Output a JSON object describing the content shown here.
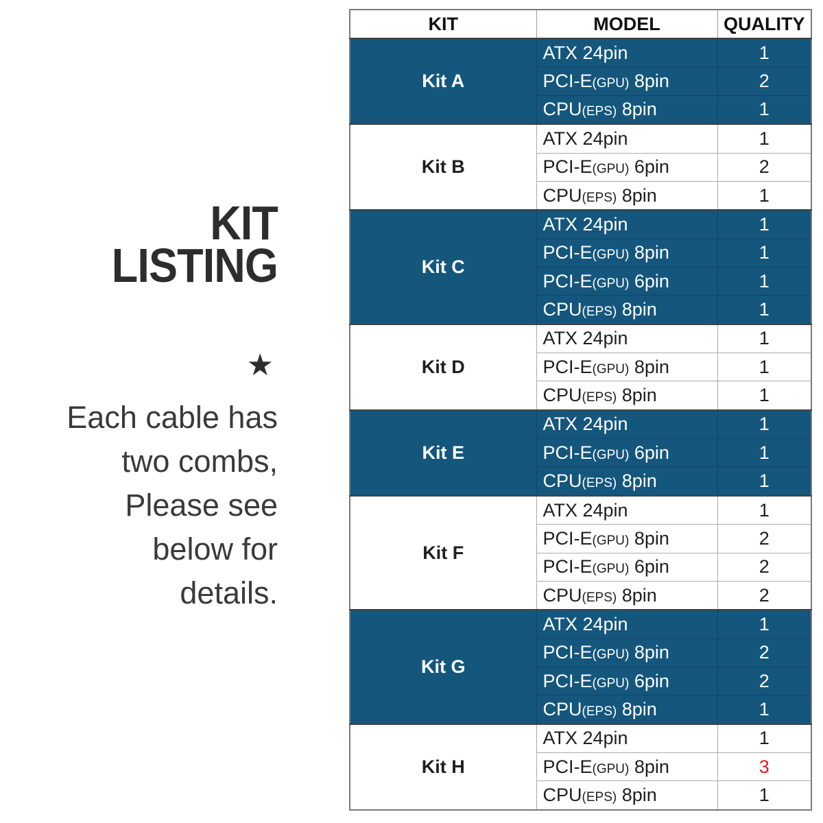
{
  "left_panel": {
    "title_line1": "KIT",
    "title_line2": "LISTING",
    "star_icon": "★",
    "note_lines": [
      "Each cable has",
      "two combs,",
      "Please see",
      "below for",
      "details."
    ]
  },
  "table": {
    "headers": [
      "KIT",
      "MODEL",
      "QUALITY"
    ],
    "colors": {
      "row_blue": "#15567D",
      "row_white": "#ffffff",
      "text_on_blue": "#ffffff",
      "text_on_white": "#1f1f1f",
      "qty_red": "#e01f1f",
      "section_border": "#414141"
    },
    "kits": [
      {
        "name": "Kit A",
        "shaded": true,
        "rows": [
          {
            "model": {
              "main": "ATX 24pin",
              "sub": "",
              "tail": ""
            },
            "qty": "1",
            "red": false
          },
          {
            "model": {
              "main": "PCI-E",
              "sub": "(GPU)",
              "tail": " 8pin"
            },
            "qty": "2",
            "red": false
          },
          {
            "model": {
              "main": "CPU",
              "sub": "(EPS)",
              "tail": " 8pin"
            },
            "qty": "1",
            "red": false
          }
        ]
      },
      {
        "name": "Kit B",
        "shaded": false,
        "rows": [
          {
            "model": {
              "main": "ATX 24pin",
              "sub": "",
              "tail": ""
            },
            "qty": "1",
            "red": false
          },
          {
            "model": {
              "main": "PCI-E",
              "sub": "(GPU)",
              "tail": " 6pin"
            },
            "qty": "2",
            "red": false
          },
          {
            "model": {
              "main": "CPU",
              "sub": "(EPS)",
              "tail": " 8pin"
            },
            "qty": "1",
            "red": false
          }
        ]
      },
      {
        "name": "Kit C",
        "shaded": true,
        "rows": [
          {
            "model": {
              "main": "ATX 24pin",
              "sub": "",
              "tail": ""
            },
            "qty": "1",
            "red": false
          },
          {
            "model": {
              "main": "PCI-E",
              "sub": "(GPU)",
              "tail": " 8pin"
            },
            "qty": "1",
            "red": false
          },
          {
            "model": {
              "main": "PCI-E",
              "sub": "(GPU)",
              "tail": " 6pin"
            },
            "qty": "1",
            "red": false
          },
          {
            "model": {
              "main": "CPU",
              "sub": "(EPS)",
              "tail": " 8pin"
            },
            "qty": "1",
            "red": false
          }
        ]
      },
      {
        "name": "Kit D",
        "shaded": false,
        "rows": [
          {
            "model": {
              "main": "ATX 24pin",
              "sub": "",
              "tail": ""
            },
            "qty": "1",
            "red": false
          },
          {
            "model": {
              "main": "PCI-E",
              "sub": "(GPU)",
              "tail": " 8pin"
            },
            "qty": "1",
            "red": false
          },
          {
            "model": {
              "main": "CPU",
              "sub": "(EPS)",
              "tail": " 8pin"
            },
            "qty": "1",
            "red": false
          }
        ]
      },
      {
        "name": "Kit E",
        "shaded": true,
        "rows": [
          {
            "model": {
              "main": "ATX 24pin",
              "sub": "",
              "tail": ""
            },
            "qty": "1",
            "red": false
          },
          {
            "model": {
              "main": "PCI-E",
              "sub": "(GPU)",
              "tail": " 6pin"
            },
            "qty": "1",
            "red": false
          },
          {
            "model": {
              "main": "CPU",
              "sub": "(EPS)",
              "tail": " 8pin"
            },
            "qty": "1",
            "red": false
          }
        ]
      },
      {
        "name": "Kit F",
        "shaded": false,
        "rows": [
          {
            "model": {
              "main": "ATX 24pin",
              "sub": "",
              "tail": ""
            },
            "qty": "1",
            "red": false
          },
          {
            "model": {
              "main": "PCI-E",
              "sub": "(GPU)",
              "tail": " 8pin"
            },
            "qty": "2",
            "red": false
          },
          {
            "model": {
              "main": "PCI-E",
              "sub": "(GPU)",
              "tail": " 6pin"
            },
            "qty": "2",
            "red": false
          },
          {
            "model": {
              "main": "CPU",
              "sub": "(EPS)",
              "tail": " 8pin"
            },
            "qty": "2",
            "red": false
          }
        ]
      },
      {
        "name": "Kit G",
        "shaded": true,
        "rows": [
          {
            "model": {
              "main": "ATX 24pin",
              "sub": "",
              "tail": ""
            },
            "qty": "1",
            "red": false
          },
          {
            "model": {
              "main": "PCI-E",
              "sub": "(GPU)",
              "tail": " 8pin"
            },
            "qty": "2",
            "red": false
          },
          {
            "model": {
              "main": "PCI-E",
              "sub": "(GPU)",
              "tail": " 6pin"
            },
            "qty": "2",
            "red": false
          },
          {
            "model": {
              "main": "CPU",
              "sub": "(EPS)",
              "tail": " 8pin"
            },
            "qty": "1",
            "red": false
          }
        ]
      },
      {
        "name": "Kit H",
        "shaded": false,
        "rows": [
          {
            "model": {
              "main": "ATX 24pin",
              "sub": "",
              "tail": ""
            },
            "qty": "1",
            "red": false
          },
          {
            "model": {
              "main": "PCI-E",
              "sub": "(GPU)",
              "tail": " 8pin"
            },
            "qty": "3",
            "red": true
          },
          {
            "model": {
              "main": "CPU",
              "sub": "(EPS)",
              "tail": " 8pin"
            },
            "qty": "1",
            "red": false
          }
        ]
      }
    ]
  }
}
